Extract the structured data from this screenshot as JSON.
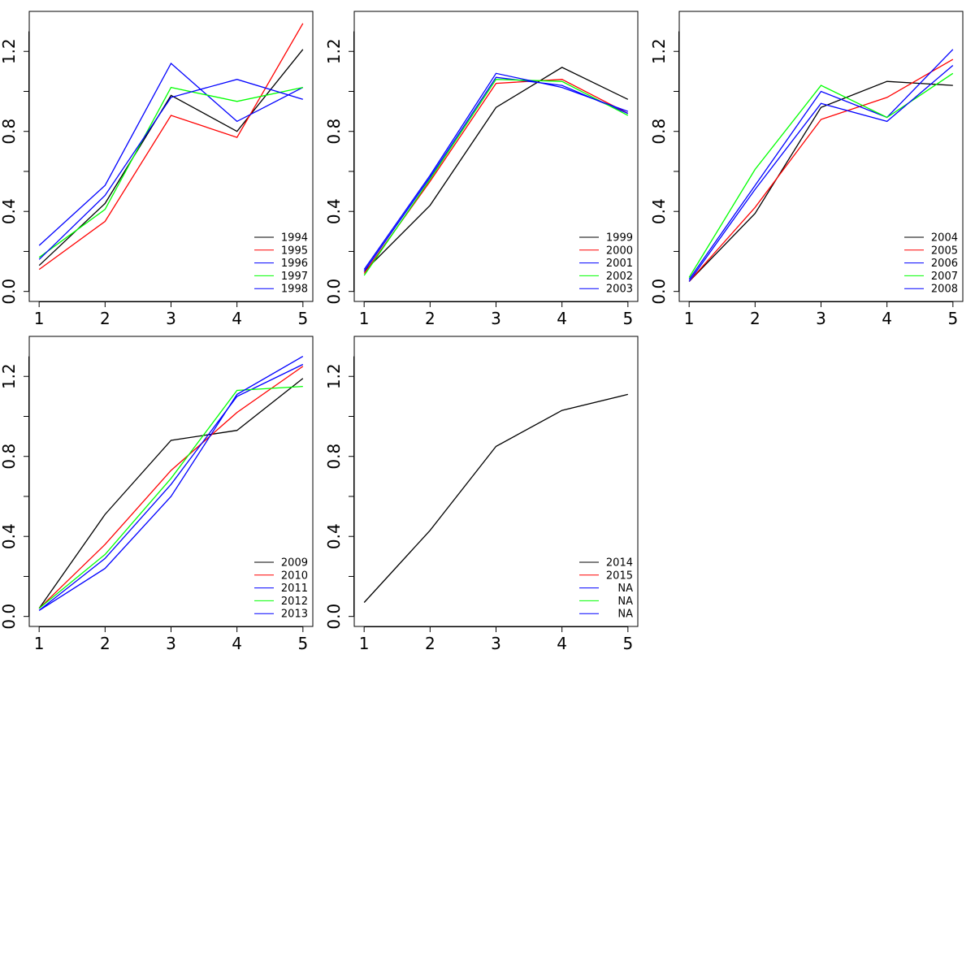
{
  "chart_data": [
    {
      "type": "line",
      "x": [
        1,
        2,
        3,
        4,
        5
      ],
      "ylim": [
        -0.05,
        1.4
      ],
      "xlim": [
        0.85,
        5.15
      ],
      "yticks": [
        "0.0",
        "0.4",
        "0.8",
        "1.2"
      ],
      "ytick_values": [
        0.0,
        0.4,
        0.8,
        1.2
      ],
      "xticks": [
        "1",
        "2",
        "3",
        "4",
        "5"
      ],
      "legend_position": "bottom-right",
      "grid": false,
      "series": [
        {
          "name": "1994",
          "color": "#000000",
          "values": [
            0.13,
            0.44,
            0.98,
            0.8,
            1.21
          ]
        },
        {
          "name": "1995",
          "color": "#ff0000",
          "values": [
            0.11,
            0.35,
            0.88,
            0.77,
            1.34
          ]
        },
        {
          "name": "1996",
          "color": "#0000ff",
          "values": [
            0.23,
            0.53,
            1.14,
            0.85,
            1.02
          ]
        },
        {
          "name": "1997",
          "color": "#00ff00",
          "values": [
            0.17,
            0.41,
            1.02,
            0.95,
            1.02
          ]
        },
        {
          "name": "1998",
          "color": "#0000ff",
          "values": [
            0.16,
            0.48,
            0.97,
            1.06,
            0.96
          ]
        }
      ]
    },
    {
      "type": "line",
      "x": [
        1,
        2,
        3,
        4,
        5
      ],
      "ylim": [
        -0.05,
        1.4
      ],
      "xlim": [
        0.85,
        5.15
      ],
      "yticks": [
        "0.0",
        "0.4",
        "0.8",
        "1.2"
      ],
      "ytick_values": [
        0.0,
        0.4,
        0.8,
        1.2
      ],
      "xticks": [
        "1",
        "2",
        "3",
        "4",
        "5"
      ],
      "legend_position": "bottom-right",
      "grid": false,
      "series": [
        {
          "name": "1999",
          "color": "#000000",
          "values": [
            0.1,
            0.43,
            0.92,
            1.12,
            0.96
          ]
        },
        {
          "name": "2000",
          "color": "#ff0000",
          "values": [
            0.09,
            0.55,
            1.04,
            1.06,
            0.89
          ]
        },
        {
          "name": "2001",
          "color": "#0000ff",
          "values": [
            0.1,
            0.57,
            1.07,
            1.03,
            0.89
          ]
        },
        {
          "name": "2002",
          "color": "#00ff00",
          "values": [
            0.08,
            0.56,
            1.06,
            1.05,
            0.88
          ]
        },
        {
          "name": "2003",
          "color": "#0000ff",
          "values": [
            0.11,
            0.58,
            1.09,
            1.02,
            0.9
          ]
        }
      ]
    },
    {
      "type": "line",
      "x": [
        1,
        2,
        3,
        4,
        5
      ],
      "ylim": [
        -0.05,
        1.4
      ],
      "xlim": [
        0.85,
        5.15
      ],
      "yticks": [
        "0.0",
        "0.4",
        "0.8",
        "1.2"
      ],
      "ytick_values": [
        0.0,
        0.4,
        0.8,
        1.2
      ],
      "xticks": [
        "1",
        "2",
        "3",
        "4",
        "5"
      ],
      "legend_position": "bottom-right",
      "grid": false,
      "series": [
        {
          "name": "2004",
          "color": "#000000",
          "values": [
            0.05,
            0.39,
            0.92,
            1.05,
            1.03
          ]
        },
        {
          "name": "2005",
          "color": "#ff0000",
          "values": [
            0.05,
            0.42,
            0.86,
            0.97,
            1.16
          ]
        },
        {
          "name": "2006",
          "color": "#0000ff",
          "values": [
            0.06,
            0.53,
            1.0,
            0.87,
            1.21
          ]
        },
        {
          "name": "2007",
          "color": "#00ff00",
          "values": [
            0.07,
            0.61,
            1.03,
            0.87,
            1.09
          ]
        },
        {
          "name": "2008",
          "color": "#0000ff",
          "values": [
            0.05,
            0.51,
            0.94,
            0.85,
            1.13
          ]
        }
      ]
    },
    {
      "type": "line",
      "x": [
        1,
        2,
        3,
        4,
        5
      ],
      "ylim": [
        -0.05,
        1.4
      ],
      "xlim": [
        0.85,
        5.15
      ],
      "yticks": [
        "0.0",
        "0.4",
        "0.8",
        "1.2"
      ],
      "ytick_values": [
        0.0,
        0.4,
        0.8,
        1.2
      ],
      "xticks": [
        "1",
        "2",
        "3",
        "4",
        "5"
      ],
      "legend_position": "bottom-right",
      "grid": false,
      "series": [
        {
          "name": "2009",
          "color": "#000000",
          "values": [
            0.04,
            0.51,
            0.88,
            0.93,
            1.19
          ]
        },
        {
          "name": "2010",
          "color": "#ff0000",
          "values": [
            0.04,
            0.36,
            0.73,
            1.02,
            1.25
          ]
        },
        {
          "name": "2011",
          "color": "#0000ff",
          "values": [
            0.03,
            0.29,
            0.66,
            1.1,
            1.26
          ]
        },
        {
          "name": "2012",
          "color": "#00ff00",
          "values": [
            0.04,
            0.31,
            0.69,
            1.13,
            1.15
          ]
        },
        {
          "name": "2013",
          "color": "#0000ff",
          "values": [
            0.03,
            0.24,
            0.6,
            1.11,
            1.3
          ]
        }
      ]
    },
    {
      "type": "line",
      "x": [
        1,
        2,
        3,
        4,
        5
      ],
      "ylim": [
        -0.05,
        1.4
      ],
      "xlim": [
        0.85,
        5.15
      ],
      "yticks": [
        "0.0",
        "0.4",
        "0.8",
        "1.2"
      ],
      "ytick_values": [
        0.0,
        0.4,
        0.8,
        1.2
      ],
      "xticks": [
        "1",
        "2",
        "3",
        "4",
        "5"
      ],
      "legend_position": "bottom-right",
      "grid": false,
      "legend": [
        {
          "name": "2014",
          "color": "#000000"
        },
        {
          "name": "2015",
          "color": "#ff0000"
        },
        {
          "name": "NA",
          "color": "#0000ff"
        },
        {
          "name": "NA",
          "color": "#00ff00"
        },
        {
          "name": "NA",
          "color": "#0000ff"
        }
      ],
      "series": [
        {
          "color": "#000000",
          "values": [
            0.07,
            0.43,
            0.85,
            1.03,
            1.11
          ]
        }
      ]
    }
  ]
}
